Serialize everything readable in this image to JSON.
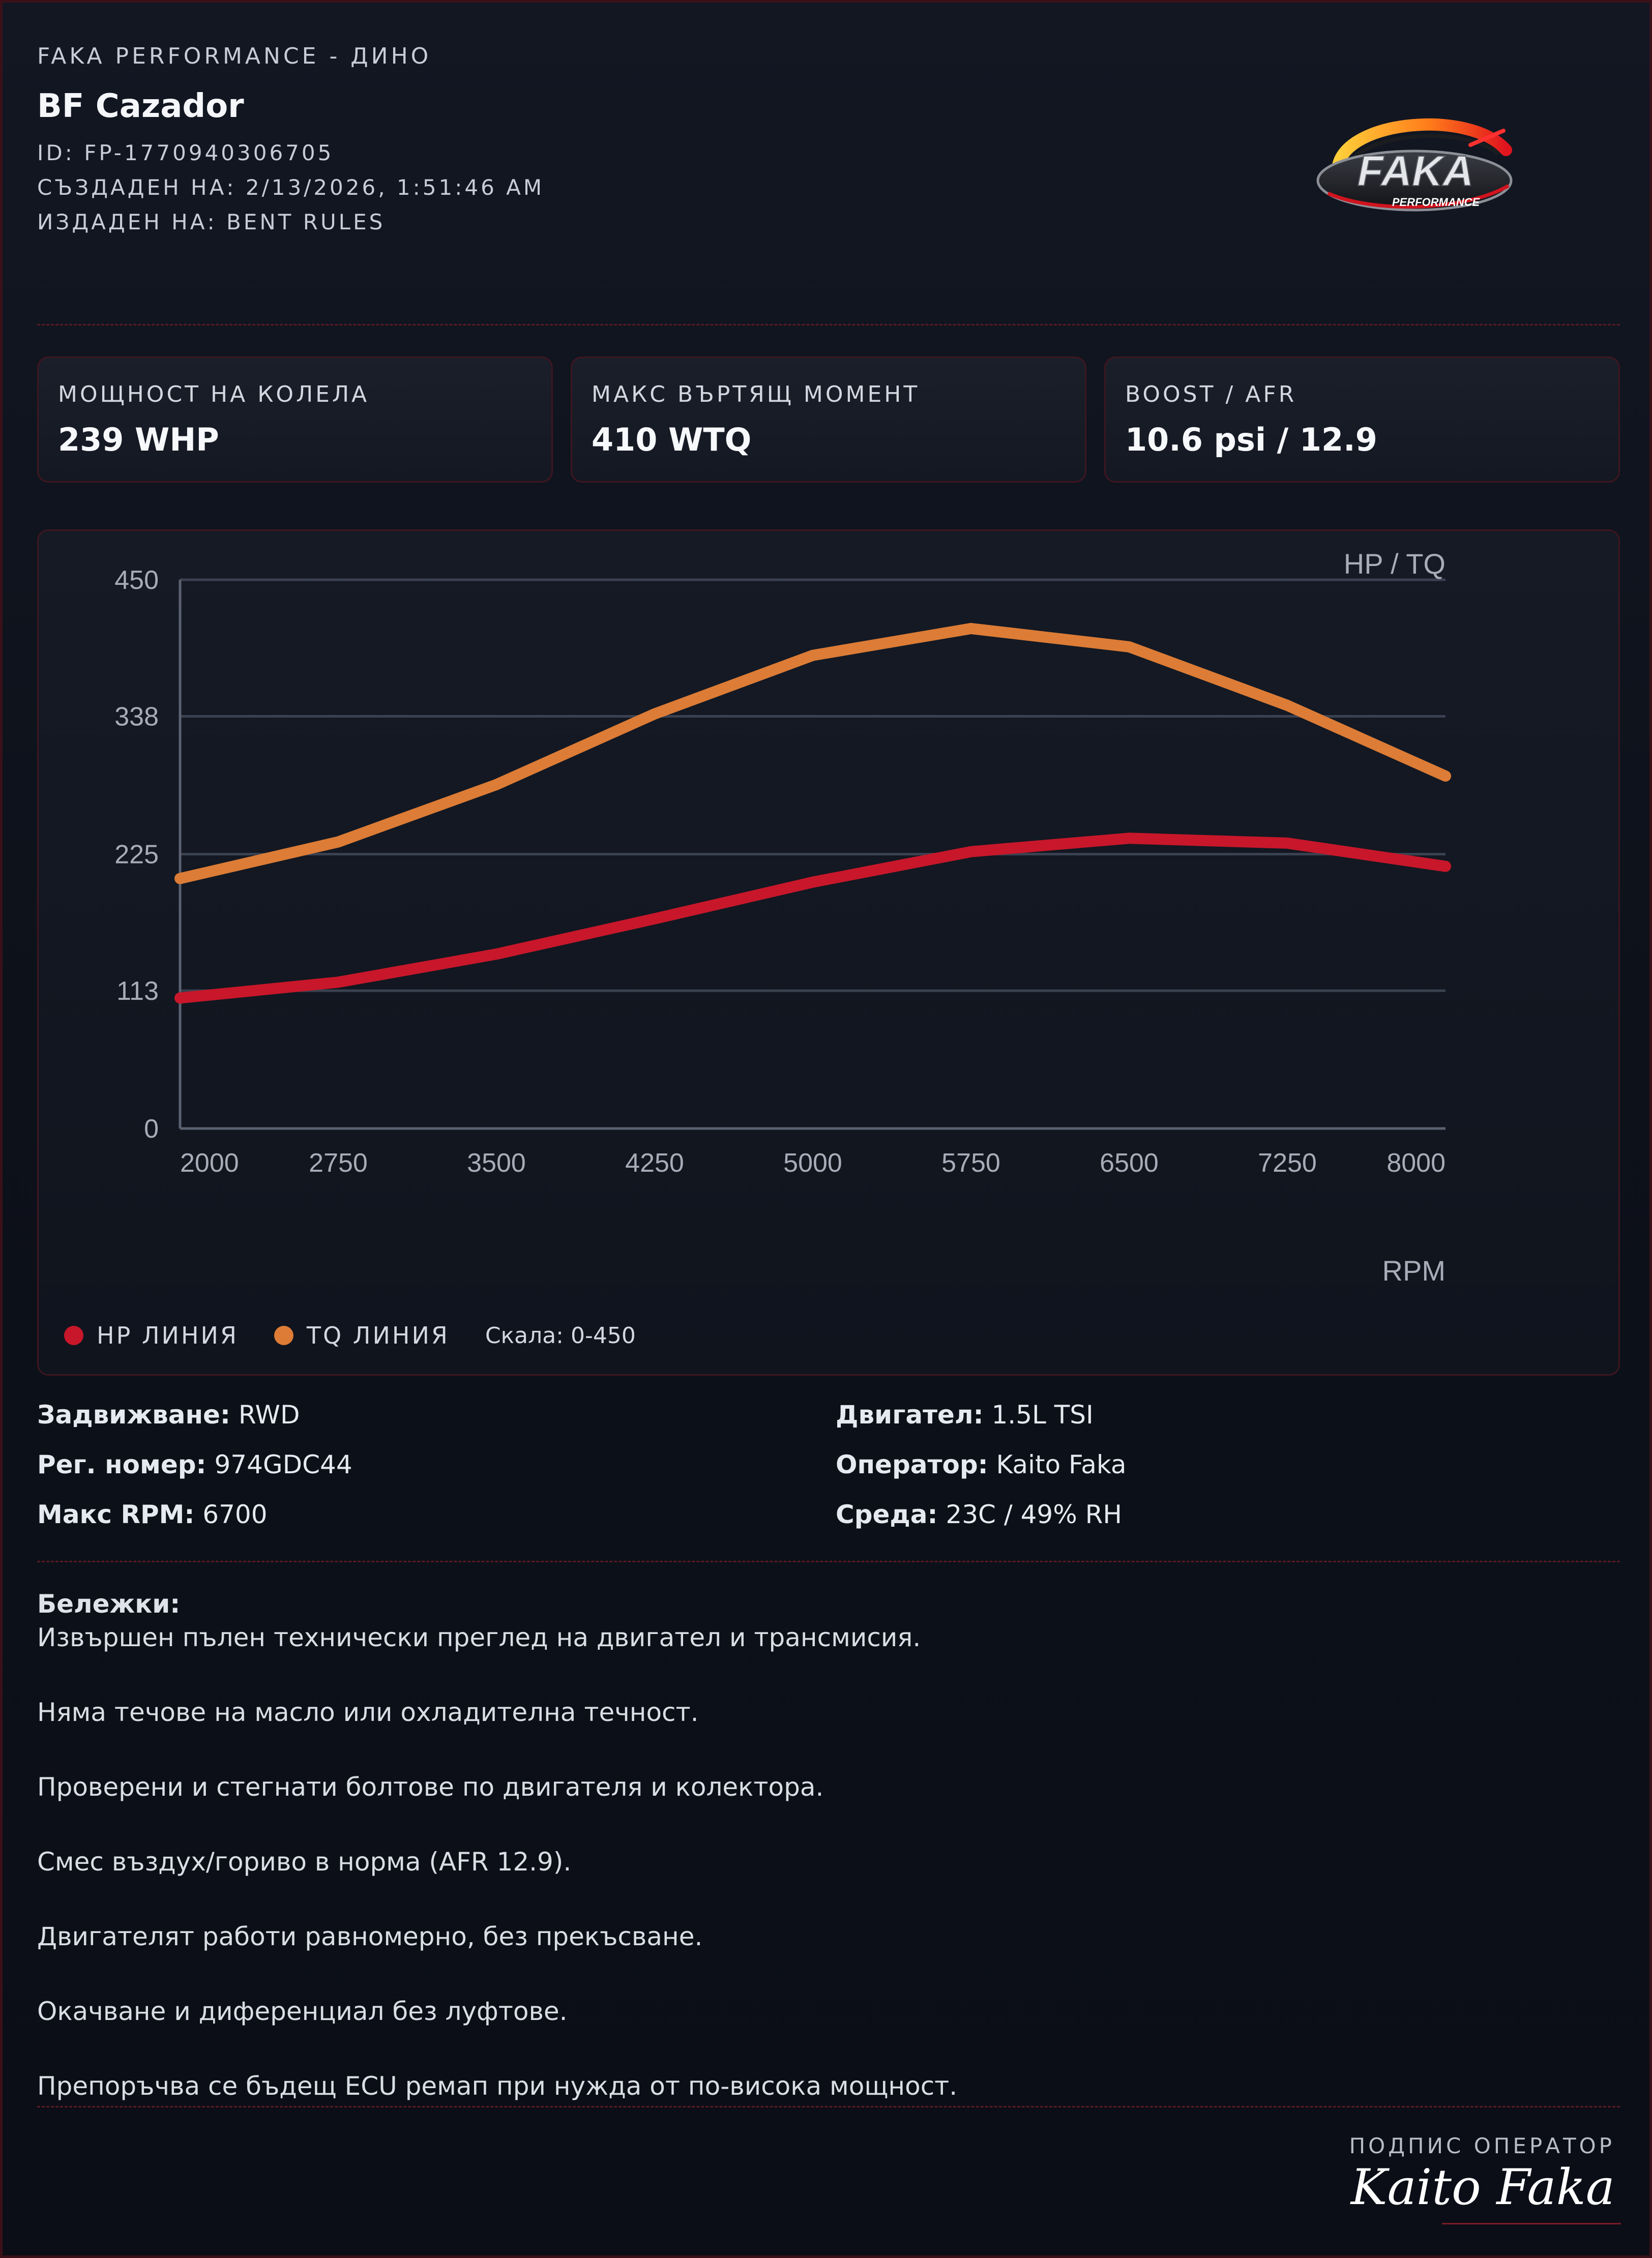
{
  "header": {
    "brand_line": "FAKA PERFORMANCE - ДИНО",
    "car_name": "BF Cazador",
    "id_line": "ID: FP-1770940306705",
    "created_line": "СЪЗДАДЕН НА: 2/13/2026, 1:51:46 AM",
    "issued_line": "ИЗДАДЕН НА: BENT RULES",
    "logo_text": "FAKA",
    "logo_subtext": "PERFORMANCE"
  },
  "stats": [
    {
      "label": "МОЩНОСТ НА КОЛЕЛА",
      "value": "239 WHP"
    },
    {
      "label": "МАКС ВЪРТЯЩ МОМЕНТ",
      "value": "410 WTQ"
    },
    {
      "label": "BOOST / AFR",
      "value": "10.6 psi / 12.9"
    }
  ],
  "chart_data": {
    "type": "line",
    "title": "",
    "ylabel": "HP / TQ",
    "xlabel": "RPM",
    "ylim": [
      0,
      450
    ],
    "xlim": [
      2000,
      8000
    ],
    "yticks": [
      0,
      113,
      225,
      338,
      450
    ],
    "xticks": [
      2000,
      2750,
      3500,
      4250,
      5000,
      5750,
      6500,
      7250,
      8000
    ],
    "grid": true,
    "x": [
      2000,
      2750,
      3500,
      4250,
      5000,
      5750,
      6500,
      7250,
      8000
    ],
    "series": [
      {
        "name": "HP ЛИНИЯ",
        "color": "#c8172a",
        "values": [
          107,
          120,
          143,
          172,
          202,
          227,
          238,
          234,
          215
        ]
      },
      {
        "name": "TQ ЛИНИЯ",
        "color": "#dc7c36",
        "values": [
          205,
          235,
          282,
          340,
          388,
          410,
          395,
          347,
          289
        ]
      }
    ]
  },
  "legend": {
    "hp_label": "HP ЛИНИЯ",
    "tq_label": "TQ ЛИНИЯ",
    "scale_label": "Скала: 0-450"
  },
  "specs": {
    "left": [
      {
        "key": "Задвижване:",
        "value": "RWD"
      },
      {
        "key": "Рег. номер:",
        "value": "974GDC44"
      },
      {
        "key": "Макс RPM:",
        "value": "6700"
      }
    ],
    "right": [
      {
        "key": "Двигател:",
        "value": "1.5L TSI"
      },
      {
        "key": "Оператор:",
        "value": "Kaito Faka"
      },
      {
        "key": "Среда:",
        "value": "23C / 49% RH"
      }
    ]
  },
  "notes": {
    "title": "Бележки:",
    "lines": [
      "Извършен пълен технически преглед на двигател и трансмисия.",
      "Няма течове на масло или охладителна течност.",
      "Проверени и стегнати болтове по двигателя и колектора.",
      "Смес въздух/гориво в норма (AFR 12.9).",
      "Двигателят работи равномерно, без прекъсване.",
      "Окачване и диференциал без луфтове.",
      "Препоръчва се бъдещ ECU ремап при нужда от по-висока мощност."
    ]
  },
  "signature": {
    "label": "ПОДПИС ОПЕРАТОР",
    "name": "Kaito Faka"
  },
  "colors": {
    "accent": "#c8172a",
    "torque": "#dc7c36",
    "background": "#0b0f17",
    "border": "#3e1620"
  }
}
